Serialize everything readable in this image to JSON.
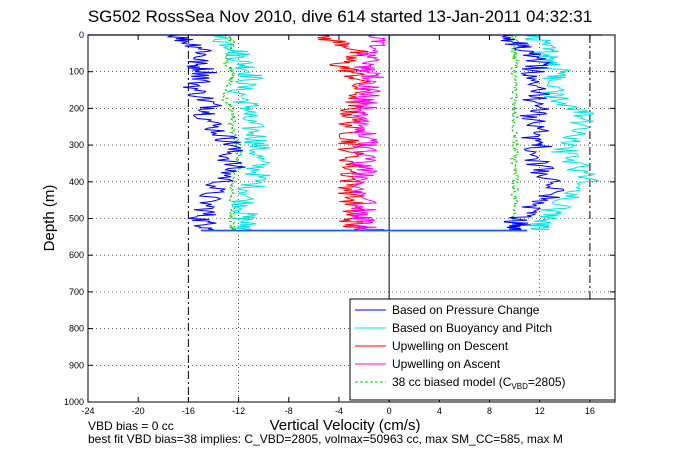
{
  "chart_data": {
    "type": "line",
    "title": "SG502 RossSea Nov 2010, dive 614 started 13-Jan-2011 04:32:31",
    "xlabel": "Vertical Velocity (cm/s)",
    "ylabel": "Depth (m)",
    "xlim": [
      -24,
      18
    ],
    "ylim": [
      0,
      1000
    ],
    "y_reversed": true,
    "xticks": [
      "-24",
      "-20",
      "-16",
      "-12",
      "-8",
      "-4",
      "0",
      "4",
      "8",
      "12",
      "16"
    ],
    "yticks": [
      "0",
      "100",
      "200",
      "300",
      "400",
      "500",
      "600",
      "700",
      "800",
      "900",
      "1000"
    ],
    "reference_lines": [
      {
        "x": -16,
        "style": "dashdot"
      },
      {
        "x": 16,
        "style": "dashdot"
      },
      {
        "x": -12,
        "style": "dotted"
      },
      {
        "x": 12,
        "style": "dotted"
      },
      {
        "x": 0,
        "style": "solid"
      }
    ],
    "grid": "dotted",
    "legend_position": "bottom-right",
    "series": [
      {
        "name": "Based on Pressure Change",
        "color": "#0000ff",
        "descent": {
          "depth": [
            0,
            20,
            40,
            60,
            80,
            100,
            120,
            150,
            180,
            200,
            220,
            250,
            280,
            300,
            330,
            360,
            390,
            420,
            450,
            480,
            500,
            520,
            530
          ],
          "w": [
            -17,
            -16,
            -14.5,
            -15,
            -15.5,
            -14.5,
            -15,
            -15.5,
            -14.5,
            -14,
            -14.5,
            -14,
            -13,
            -12.5,
            -12.8,
            -12.5,
            -13,
            -14,
            -14.5,
            -14.5,
            -15,
            -14.5,
            -14
          ]
        },
        "ascent": {
          "depth": [
            530,
            520,
            500,
            480,
            450,
            420,
            390,
            360,
            330,
            300,
            280,
            250,
            220,
            200,
            180,
            150,
            120,
            100,
            80,
            60,
            40,
            20,
            0
          ],
          "w": [
            10,
            10.5,
            10,
            11,
            12.5,
            13,
            12.5,
            12,
            11.5,
            12,
            11.5,
            12,
            11.5,
            12,
            11.5,
            12,
            11,
            11.5,
            12,
            11.5,
            11,
            10,
            10
          ]
        }
      },
      {
        "name": "Based on Buoyancy and Pitch",
        "color": "#00e5e5",
        "descent": {
          "depth": [
            0,
            20,
            40,
            60,
            80,
            100,
            120,
            150,
            180,
            200,
            220,
            250,
            280,
            300,
            330,
            360,
            390,
            420,
            450,
            480,
            500,
            520,
            530
          ],
          "w": [
            -14,
            -13,
            -12,
            -12,
            -11.5,
            -11,
            -11,
            -12,
            -11.5,
            -11,
            -11.5,
            -11,
            -10.5,
            -10.5,
            -10.5,
            -10.5,
            -10.5,
            -11,
            -11.5,
            -11.5,
            -11.5,
            -11.5,
            -11
          ]
        },
        "ascent": {
          "depth": [
            530,
            520,
            500,
            480,
            450,
            420,
            390,
            360,
            330,
            300,
            280,
            250,
            220,
            200,
            180,
            150,
            120,
            100,
            80,
            60,
            40,
            20,
            0
          ],
          "w": [
            12,
            12,
            12.5,
            13,
            14,
            15,
            16,
            15,
            14,
            14,
            14.5,
            15,
            15.5,
            15,
            13.5,
            13,
            13,
            13.5,
            13,
            12.5,
            12.5,
            12,
            12
          ]
        }
      },
      {
        "name": "Upwelling on Descent",
        "color": "#ff0000",
        "descent": {
          "depth": [
            0,
            20,
            40,
            60,
            80,
            100,
            120,
            150,
            180,
            200,
            220,
            250,
            280,
            300,
            330,
            360,
            390,
            420,
            450,
            480,
            500,
            520,
            530
          ],
          "w": [
            -6,
            -4,
            -2.5,
            -3,
            -4,
            -3,
            -2.5,
            -2.5,
            -2.5,
            -3,
            -3,
            -3,
            -3,
            -3,
            -3,
            -3,
            -3,
            -3,
            -3,
            -3,
            -3,
            -3,
            -2.5
          ]
        }
      },
      {
        "name": "Upwelling on Ascent",
        "color": "#ff00ff",
        "descent": {
          "depth": [
            530,
            520,
            500,
            480,
            450,
            420,
            390,
            360,
            330,
            300,
            280,
            250,
            220,
            200,
            180,
            150,
            120,
            100,
            80,
            60,
            40,
            20,
            0
          ],
          "w": [
            -1,
            -2,
            -2,
            -2,
            -2,
            -2,
            -2,
            -2,
            -2,
            -2,
            -2,
            -2,
            -2,
            -2,
            -2,
            -1.5,
            -1.5,
            -1.5,
            -2,
            -1.5,
            -1.5,
            -1,
            -1
          ]
        }
      },
      {
        "name": "38 cc biased model (C_VBD=2805)",
        "color": "#00cc00",
        "dashed": true,
        "descent": {
          "depth": [
            0,
            20,
            40,
            60,
            80,
            100,
            120,
            150,
            180,
            200,
            220,
            250,
            280,
            300,
            330,
            360,
            390,
            420,
            450,
            480,
            500,
            520,
            530
          ],
          "w": [
            -13,
            -12.5,
            -12.5,
            -13,
            -13,
            -12.5,
            -12.5,
            -13,
            -13,
            -12.5,
            -12.5,
            -12.5,
            -12.5,
            -12,
            -12,
            -12,
            -12.5,
            -12.5,
            -12.5,
            -12.5,
            -12.5,
            -12.5,
            -12.5
          ]
        },
        "ascent": {
          "depth": [
            530,
            520,
            500,
            480,
            450,
            420,
            390,
            360,
            330,
            300,
            280,
            250,
            220,
            200,
            180,
            150,
            120,
            100,
            80,
            60,
            40,
            20,
            0
          ],
          "w": [
            10,
            10,
            10,
            10,
            10,
            10,
            10,
            10,
            10,
            10,
            10,
            10,
            10,
            10,
            10,
            10,
            10,
            10,
            10,
            10,
            10,
            10,
            10
          ]
        }
      }
    ],
    "legend_entries": [
      {
        "text": "Based on Pressure Change",
        "color": "#0000ff",
        "dashed": false
      },
      {
        "text": "Based on Buoyancy and Pitch",
        "color": "#00e5e5",
        "dashed": false
      },
      {
        "text": "Upwelling on Descent",
        "color": "#ff0000",
        "dashed": false
      },
      {
        "text": "Upwelling on Ascent",
        "color": "#ff00ff",
        "dashed": false
      },
      {
        "text": "38 cc biased model (C",
        "sub": "VBD",
        "suffix": "=2805)",
        "color": "#00cc00",
        "dashed": true
      }
    ]
  },
  "notes": {
    "vbd_bias": "VBD bias = 0 cc",
    "best_fit": "best fit VBD bias=38 implies: C_VBD=2805, volmax=50963 cc, max SM_CC=585, max M"
  }
}
